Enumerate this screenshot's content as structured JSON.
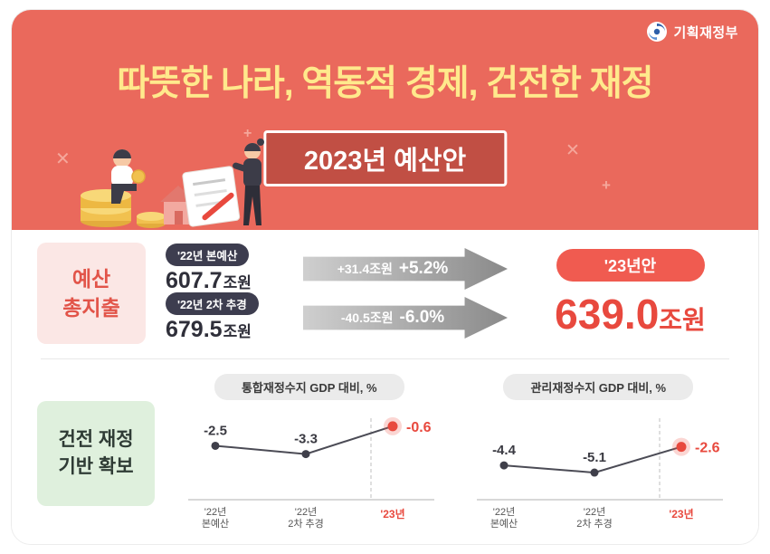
{
  "colors": {
    "hero_bg": "#EA695C",
    "title_yellow": "#FFE98C",
    "subtitle_box_bg": "#C14F44",
    "accent_red": "#E8493E",
    "badge_dark": "#3D3D4F",
    "pink_label_bg": "#FBE7E5",
    "green_label_bg": "#DFF0DD",
    "arrow_gray": "#8A8A8A"
  },
  "logo": {
    "text": "기획재정부"
  },
  "hero": {
    "title": "따뜻한 나라, 역동적 경제, 건전한 재정",
    "subtitle": "2023년 예산안"
  },
  "decor": {
    "cross": "✕",
    "plus": "+"
  },
  "budget": {
    "label_line1": "예산",
    "label_line2": "총지출",
    "rows": [
      {
        "badge": "'22년 본예산",
        "amount": "607.7",
        "unit": "조원",
        "change": "+31.4조원",
        "percent": "+5.2%"
      },
      {
        "badge": "'22년 2차 추경",
        "amount": "679.5",
        "unit": "조원",
        "change": "-40.5조원",
        "percent": "-6.0%"
      }
    ],
    "result": {
      "badge": "'23년안",
      "amount": "639.0",
      "unit": "조원"
    }
  },
  "fiscal": {
    "label_line1": "건전 재정",
    "label_line2": "기반 확보"
  },
  "chart_data": [
    {
      "type": "line",
      "title": "통합재정수지 GDP 대비, %",
      "categories": [
        "'22년 본예산",
        "'22년 2차 추경",
        "'23년"
      ],
      "tick_lines": [
        [
          "'22년",
          "본예산"
        ],
        [
          "'22년",
          "2차 추경"
        ],
        [
          "'23년"
        ]
      ],
      "values": [
        -2.5,
        -3.3,
        -0.6
      ],
      "highlight_index": 2,
      "ylim": [
        -6.5,
        0
      ],
      "ylabel": "GDP 대비 %",
      "grid": false,
      "legend": "none"
    },
    {
      "type": "line",
      "title": "관리재정수지 GDP 대비, %",
      "categories": [
        "'22년 본예산",
        "'22년 2차 추경",
        "'23년"
      ],
      "tick_lines": [
        [
          "'22년",
          "본예산"
        ],
        [
          "'22년",
          "2차 추경"
        ],
        [
          "'23년"
        ]
      ],
      "values": [
        -4.4,
        -5.1,
        -2.6
      ],
      "highlight_index": 2,
      "ylim": [
        -6.5,
        0
      ],
      "ylabel": "GDP 대비 %",
      "grid": false,
      "legend": "none"
    }
  ]
}
